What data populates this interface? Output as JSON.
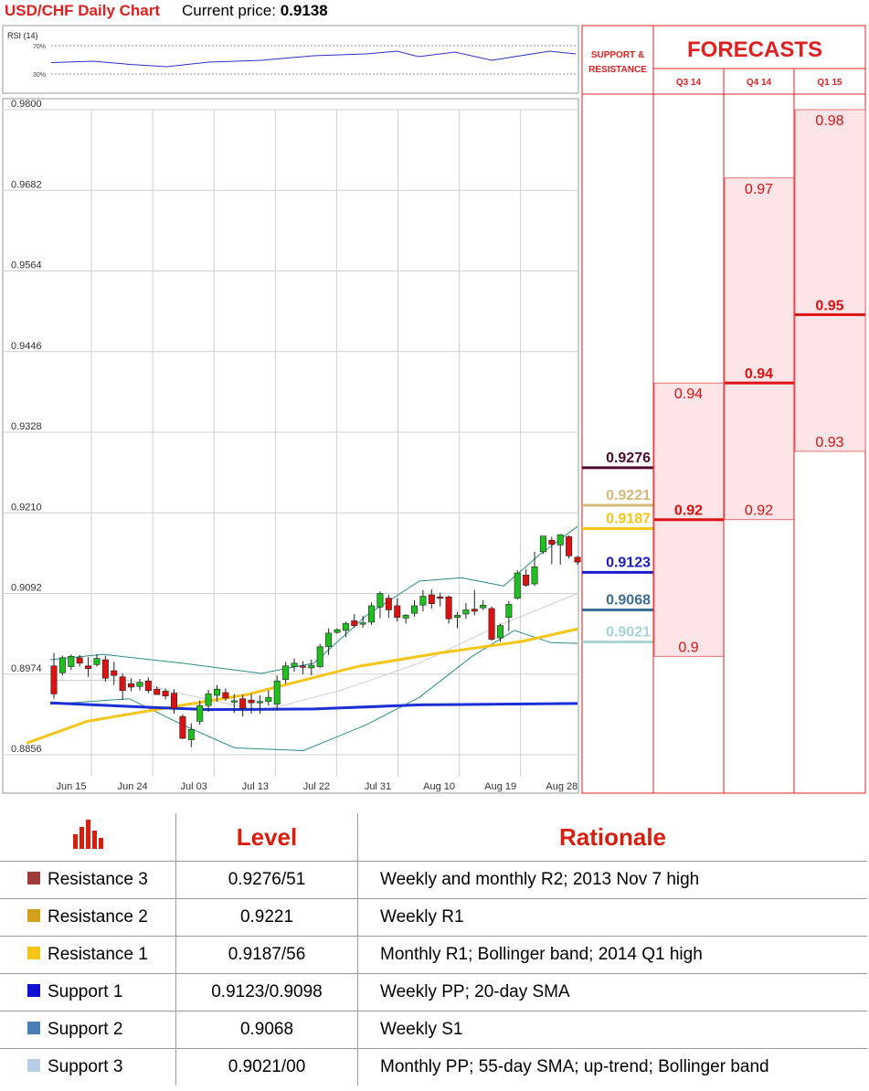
{
  "header": {
    "title": "USD/CHF Daily Chart",
    "price_label": "Current price:",
    "price": "0.9138"
  },
  "rsi": {
    "label": "RSI (14)",
    "upper": "70%",
    "lower": "30%"
  },
  "colors": {
    "up": "#1fbf1f",
    "down": "#dd1111",
    "sma20": "#c8c8c8",
    "sma55": "#f5c518",
    "sma100": "#1a2fd6",
    "bollinger": "#2e8b8b",
    "forecast_fill": "#fde4e6",
    "forecast_line": "#dd1111"
  },
  "chart_data": {
    "type": "candlestick",
    "title": "USD/CHF Daily Chart",
    "ylim": [
      0.8856,
      0.98
    ],
    "yticks": [
      "0.9800",
      "0.9682",
      "0.9564",
      "0.9446",
      "0.9328",
      "0.9210",
      "0.9092",
      "0.8974",
      "0.8856"
    ],
    "xticks": [
      "Jun 15",
      "Jun 24",
      "Jul 03",
      "Jul 13",
      "Jul 22",
      "Jul 31",
      "Aug 10",
      "Aug 19",
      "Aug 28"
    ],
    "candles": [
      {
        "o": 0.8986,
        "h": 0.9005,
        "l": 0.8938,
        "c": 0.8945
      },
      {
        "o": 0.8976,
        "h": 0.9001,
        "l": 0.8972,
        "c": 0.8998
      },
      {
        "o": 0.8985,
        "h": 0.9003,
        "l": 0.898,
        "c": 0.9
      },
      {
        "o": 0.8998,
        "h": 0.9002,
        "l": 0.8985,
        "c": 0.899
      },
      {
        "o": 0.8986,
        "h": 0.8999,
        "l": 0.897,
        "c": 0.8982
      },
      {
        "o": 0.8988,
        "h": 0.9003,
        "l": 0.8985,
        "c": 0.8997
      },
      {
        "o": 0.8995,
        "h": 0.9001,
        "l": 0.8963,
        "c": 0.8968
      },
      {
        "o": 0.8979,
        "h": 0.8992,
        "l": 0.8958,
        "c": 0.8972
      },
      {
        "o": 0.897,
        "h": 0.8975,
        "l": 0.8936,
        "c": 0.895
      },
      {
        "o": 0.896,
        "h": 0.8968,
        "l": 0.8949,
        "c": 0.8955
      },
      {
        "o": 0.8956,
        "h": 0.8967,
        "l": 0.895,
        "c": 0.8962
      },
      {
        "o": 0.8964,
        "h": 0.8969,
        "l": 0.8946,
        "c": 0.895
      },
      {
        "o": 0.8952,
        "h": 0.8956,
        "l": 0.8944,
        "c": 0.8944
      },
      {
        "o": 0.8949,
        "h": 0.8953,
        "l": 0.8937,
        "c": 0.8942
      },
      {
        "o": 0.8946,
        "h": 0.8952,
        "l": 0.8916,
        "c": 0.8924
      },
      {
        "o": 0.8912,
        "h": 0.8915,
        "l": 0.8879,
        "c": 0.888
      },
      {
        "o": 0.8878,
        "h": 0.8902,
        "l": 0.8867,
        "c": 0.8893
      },
      {
        "o": 0.8905,
        "h": 0.8935,
        "l": 0.89,
        "c": 0.8928
      },
      {
        "o": 0.8928,
        "h": 0.8951,
        "l": 0.8919,
        "c": 0.8945
      },
      {
        "o": 0.8943,
        "h": 0.8958,
        "l": 0.8934,
        "c": 0.8952
      },
      {
        "o": 0.8947,
        "h": 0.8953,
        "l": 0.8935,
        "c": 0.8939
      },
      {
        "o": 0.8935,
        "h": 0.8945,
        "l": 0.8917,
        "c": 0.8935
      },
      {
        "o": 0.8938,
        "h": 0.8944,
        "l": 0.8912,
        "c": 0.8924
      },
      {
        "o": 0.8936,
        "h": 0.8945,
        "l": 0.8916,
        "c": 0.8932
      },
      {
        "o": 0.8933,
        "h": 0.8943,
        "l": 0.8916,
        "c": 0.8934
      },
      {
        "o": 0.8934,
        "h": 0.895,
        "l": 0.8928,
        "c": 0.894
      },
      {
        "o": 0.893,
        "h": 0.8972,
        "l": 0.8921,
        "c": 0.8964
      },
      {
        "o": 0.8966,
        "h": 0.8992,
        "l": 0.896,
        "c": 0.8986
      },
      {
        "o": 0.8985,
        "h": 0.8997,
        "l": 0.8978,
        "c": 0.899
      },
      {
        "o": 0.8986,
        "h": 0.8993,
        "l": 0.8974,
        "c": 0.8985
      },
      {
        "o": 0.8983,
        "h": 0.8995,
        "l": 0.8972,
        "c": 0.8987
      },
      {
        "o": 0.8985,
        "h": 0.9018,
        "l": 0.8983,
        "c": 0.9014
      },
      {
        "o": 0.9014,
        "h": 0.9041,
        "l": 0.9002,
        "c": 0.9034
      },
      {
        "o": 0.9035,
        "h": 0.9041,
        "l": 0.9033,
        "c": 0.9039
      },
      {
        "o": 0.9038,
        "h": 0.9051,
        "l": 0.9028,
        "c": 0.9048
      },
      {
        "o": 0.9052,
        "h": 0.9062,
        "l": 0.9042,
        "c": 0.9045
      },
      {
        "o": 0.9047,
        "h": 0.9059,
        "l": 0.9042,
        "c": 0.9049
      },
      {
        "o": 0.905,
        "h": 0.9079,
        "l": 0.9046,
        "c": 0.9074
      },
      {
        "o": 0.9072,
        "h": 0.9095,
        "l": 0.9056,
        "c": 0.9092
      },
      {
        "o": 0.9085,
        "h": 0.909,
        "l": 0.9056,
        "c": 0.9068
      },
      {
        "o": 0.9074,
        "h": 0.9085,
        "l": 0.9051,
        "c": 0.9057
      },
      {
        "o": 0.9056,
        "h": 0.9062,
        "l": 0.9048,
        "c": 0.906
      },
      {
        "o": 0.9063,
        "h": 0.9082,
        "l": 0.9058,
        "c": 0.9074
      },
      {
        "o": 0.9075,
        "h": 0.9097,
        "l": 0.9066,
        "c": 0.9088
      },
      {
        "o": 0.909,
        "h": 0.9098,
        "l": 0.907,
        "c": 0.9077
      },
      {
        "o": 0.9087,
        "h": 0.9093,
        "l": 0.9073,
        "c": 0.9086
      },
      {
        "o": 0.9087,
        "h": 0.9089,
        "l": 0.9048,
        "c": 0.9055
      },
      {
        "o": 0.9057,
        "h": 0.9065,
        "l": 0.9041,
        "c": 0.906
      },
      {
        "o": 0.9062,
        "h": 0.9078,
        "l": 0.9055,
        "c": 0.9068
      },
      {
        "o": 0.9069,
        "h": 0.9097,
        "l": 0.906,
        "c": 0.9066
      },
      {
        "o": 0.9071,
        "h": 0.9082,
        "l": 0.9068,
        "c": 0.9075
      },
      {
        "o": 0.907,
        "h": 0.9073,
        "l": 0.9023,
        "c": 0.9025
      },
      {
        "o": 0.9027,
        "h": 0.9048,
        "l": 0.9021,
        "c": 0.9045
      },
      {
        "o": 0.9057,
        "h": 0.9081,
        "l": 0.9037,
        "c": 0.9076
      },
      {
        "o": 0.9085,
        "h": 0.9126,
        "l": 0.9083,
        "c": 0.9122
      },
      {
        "o": 0.9119,
        "h": 0.9128,
        "l": 0.9102,
        "c": 0.9104
      },
      {
        "o": 0.9106,
        "h": 0.9153,
        "l": 0.9103,
        "c": 0.9131
      },
      {
        "o": 0.9153,
        "h": 0.9176,
        "l": 0.915,
        "c": 0.9176
      },
      {
        "o": 0.917,
        "h": 0.9175,
        "l": 0.9135,
        "c": 0.9164
      },
      {
        "o": 0.9163,
        "h": 0.9179,
        "l": 0.9134,
        "c": 0.9178
      },
      {
        "o": 0.9175,
        "h": 0.9177,
        "l": 0.9143,
        "c": 0.9147
      },
      {
        "o": 0.9145,
        "h": 0.9147,
        "l": 0.9134,
        "c": 0.9138
      }
    ],
    "sma55": [
      [
        0,
        0.8873
      ],
      [
        0.11,
        0.8905
      ],
      [
        0.25,
        0.8924
      ],
      [
        0.4,
        0.8944
      ],
      [
        0.6,
        0.8985
      ],
      [
        0.75,
        0.9005
      ],
      [
        0.9,
        0.9022
      ],
      [
        1.0,
        0.904
      ]
    ],
    "sma100": [
      [
        0,
        0.8932
      ],
      [
        0.2,
        0.8925
      ],
      [
        0.3,
        0.8922
      ],
      [
        0.5,
        0.8923
      ],
      [
        0.7,
        0.8929
      ],
      [
        1.0,
        0.8931
      ]
    ],
    "sma20": [
      [
        0,
        0.8965
      ],
      [
        0.15,
        0.8965
      ],
      [
        0.25,
        0.8945
      ],
      [
        0.4,
        0.892
      ],
      [
        0.55,
        0.895
      ],
      [
        0.7,
        0.899
      ],
      [
        0.85,
        0.9045
      ],
      [
        1.0,
        0.9092
      ]
    ],
    "boll_upper": [
      [
        0,
        0.8995
      ],
      [
        0.1,
        0.9003
      ],
      [
        0.25,
        0.899
      ],
      [
        0.4,
        0.8975
      ],
      [
        0.5,
        0.899
      ],
      [
        0.6,
        0.906
      ],
      [
        0.7,
        0.911
      ],
      [
        0.78,
        0.9115
      ],
      [
        0.86,
        0.9103
      ],
      [
        0.93,
        0.915
      ],
      [
        1.0,
        0.919
      ]
    ],
    "boll_lower": [
      [
        0,
        0.893
      ],
      [
        0.15,
        0.8938
      ],
      [
        0.25,
        0.89
      ],
      [
        0.35,
        0.8866
      ],
      [
        0.48,
        0.8862
      ],
      [
        0.6,
        0.89
      ],
      [
        0.7,
        0.894
      ],
      [
        0.8,
        0.9
      ],
      [
        0.88,
        0.9038
      ],
      [
        0.95,
        0.902
      ],
      [
        1.0,
        0.9019
      ]
    ],
    "rsi": [
      [
        0,
        0.47
      ],
      [
        0.08,
        0.5
      ],
      [
        0.15,
        0.43
      ],
      [
        0.22,
        0.38
      ],
      [
        0.3,
        0.48
      ],
      [
        0.4,
        0.52
      ],
      [
        0.5,
        0.62
      ],
      [
        0.6,
        0.66
      ],
      [
        0.66,
        0.72
      ],
      [
        0.7,
        0.6
      ],
      [
        0.77,
        0.7
      ],
      [
        0.84,
        0.52
      ],
      [
        0.9,
        0.63
      ],
      [
        0.95,
        0.72
      ],
      [
        1.0,
        0.66
      ]
    ]
  },
  "support_resistance": {
    "title_line1": "SUPPORT &",
    "title_line2": "RESISTANCE",
    "levels": [
      {
        "label": "0.9276",
        "value": 0.9276,
        "color": "#4d0a2e"
      },
      {
        "label": "0.9221",
        "value": 0.9221,
        "color": "#d6b879"
      },
      {
        "label": "0.9187",
        "value": 0.9187,
        "color": "#f5c518"
      },
      {
        "label": "0.9123",
        "value": 0.9123,
        "color": "#1a1acc"
      },
      {
        "label": "0.9068",
        "value": 0.9068,
        "color": "#3b6d97"
      },
      {
        "label": "0.9021",
        "value": 0.9021,
        "color": "#a8d4d4"
      }
    ]
  },
  "forecasts": {
    "title": "FORECASTS",
    "quarters": [
      {
        "label": "Q3 14",
        "high": "0.94",
        "mid": "0.92",
        "low": "0.9",
        "highv": 0.94,
        "midv": 0.92,
        "lowv": 0.9
      },
      {
        "label": "Q4 14",
        "high": "0.97",
        "mid": "0.94",
        "low": "0.92",
        "highv": 0.97,
        "midv": 0.94,
        "lowv": 0.92
      },
      {
        "label": "Q1 15",
        "high": "0.98",
        "mid": "0.95",
        "low": "0.93",
        "highv": 0.98,
        "midv": 0.95,
        "lowv": 0.93
      }
    ]
  },
  "levels_table": {
    "headers": {
      "level": "Level",
      "rationale": "Rationale"
    },
    "rows": [
      {
        "name": "Resistance 3",
        "level": "0.9276/51",
        "rationale": "Weekly and monthly R2; 2013 Nov 7 high",
        "color": "#9e3a3a"
      },
      {
        "name": "Resistance 2",
        "level": "0.9221",
        "rationale": "Weekly R1",
        "color": "#d4a017"
      },
      {
        "name": "Resistance 1",
        "level": "0.9187/56",
        "rationale": "Monthly R1; Bollinger band; 2014 Q1 high",
        "color": "#f5c518"
      },
      {
        "name": "Support 1",
        "level": "0.9123/0.9098",
        "rationale": "Weekly PP; 20-day SMA",
        "color": "#1010d0"
      },
      {
        "name": "Support 2",
        "level": "0.9068",
        "rationale": "Weekly S1",
        "color": "#4a7fb5"
      },
      {
        "name": "Support 3",
        "level": "0.9021/00",
        "rationale": "Monthly PP; 55-day SMA; up-trend; Bollinger band",
        "color": "#b8cde6"
      }
    ]
  }
}
